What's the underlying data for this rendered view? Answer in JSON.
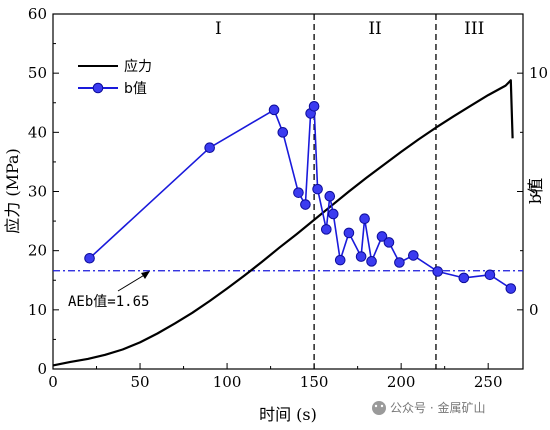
{
  "chart_data": {
    "type": "line",
    "xlabel": "时间 (s)",
    "ylabel_left": "应力 (MPa)",
    "ylabel_right": "b值",
    "xlim": [
      0,
      270
    ],
    "ylim_left": [
      0,
      60
    ],
    "ylim_right": [
      -2.5,
      12.5
    ],
    "x_ticks": [
      0,
      50,
      100,
      150,
      200,
      250
    ],
    "y_left_ticks": [
      0,
      10,
      20,
      30,
      40,
      50,
      60
    ],
    "y_right_ticks": [
      0,
      5,
      10
    ],
    "grid": false,
    "legend_position": "top-left",
    "stage_labels": [
      "I",
      "II",
      "III"
    ],
    "stage_boundaries": [
      150,
      220
    ],
    "series": [
      {
        "name": "应力",
        "axis": "left",
        "color": "#000000",
        "x": [
          0,
          10,
          20,
          30,
          40,
          50,
          60,
          70,
          80,
          90,
          100,
          110,
          120,
          130,
          140,
          150,
          160,
          170,
          180,
          190,
          200,
          210,
          220,
          230,
          240,
          250,
          260,
          263,
          264
        ],
        "y": [
          0.6,
          1.2,
          1.7,
          2.4,
          3.3,
          4.5,
          6.0,
          7.7,
          9.5,
          11.5,
          13.6,
          15.8,
          18.1,
          20.5,
          22.8,
          25.2,
          27.6,
          30.0,
          32.3,
          34.5,
          36.7,
          38.8,
          40.8,
          42.7,
          44.5,
          46.3,
          47.9,
          48.8,
          39.0
        ]
      },
      {
        "name": "b值",
        "axis": "right",
        "color": "#1a1adb",
        "x": [
          21,
          90,
          127,
          132,
          141,
          145,
          148,
          150,
          152,
          157,
          159,
          161,
          165,
          170,
          177,
          179,
          183,
          189,
          193,
          199,
          207,
          221,
          236,
          251,
          263
        ],
        "y": [
          2.18,
          6.85,
          8.45,
          7.5,
          4.95,
          4.45,
          8.3,
          8.6,
          5.1,
          3.4,
          4.8,
          4.05,
          2.1,
          3.25,
          2.25,
          3.85,
          2.05,
          3.1,
          2.85,
          2.0,
          2.3,
          1.62,
          1.35,
          1.48,
          0.9
        ]
      }
    ],
    "reference_line": {
      "axis": "left",
      "y": 16.6,
      "color": "#1a1adb",
      "label": "AEb值=1.65"
    }
  },
  "watermark": "公众号 · 金属矿山"
}
